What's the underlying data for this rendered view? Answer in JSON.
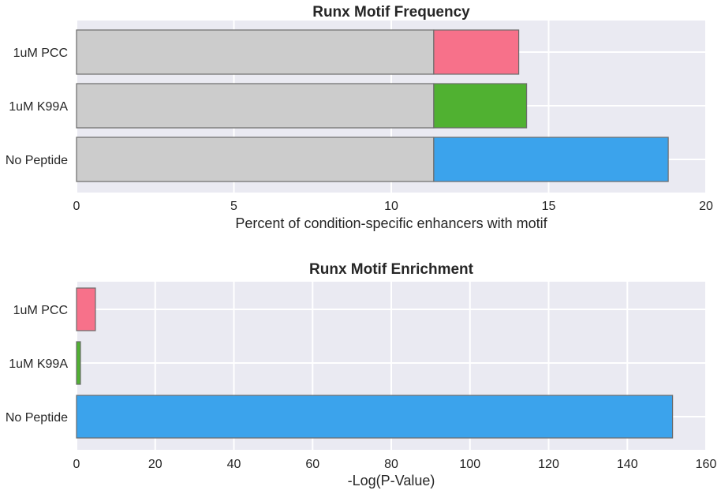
{
  "chart_data": [
    {
      "type": "bar",
      "orientation": "horizontal",
      "stacked": true,
      "title": "Runx Motif Frequency",
      "xlabel": "Percent of condition-specific enhancers with motif",
      "ylabel": "",
      "xlim": [
        0,
        20
      ],
      "xticks": [
        "0",
        "5",
        "10",
        "15",
        "20"
      ],
      "categories": [
        "1uM PCC",
        "1uM K99A",
        "No Peptide"
      ],
      "series": [
        {
          "values": [
            11.35,
            11.35,
            11.35
          ],
          "color": "#cccccc"
        },
        {
          "values": [
            2.7,
            2.95,
            7.45
          ],
          "colors": [
            "#f7718a",
            "#50b131",
            "#3ba3ec"
          ]
        }
      ],
      "grid": true
    },
    {
      "type": "bar",
      "orientation": "horizontal",
      "title": "Runx Motif Enrichment",
      "xlabel": "-Log(P-Value)",
      "ylabel": "",
      "xlim": [
        0,
        160
      ],
      "xticks": [
        "0",
        "20",
        "40",
        "60",
        "80",
        "100",
        "120",
        "140",
        "160"
      ],
      "categories": [
        "1uM PCC",
        "1uM K99A",
        "No Peptide"
      ],
      "values": [
        4.8,
        1.0,
        151.5
      ],
      "colors": [
        "#f7718a",
        "#50b131",
        "#3ba3ec"
      ],
      "grid": true
    }
  ]
}
